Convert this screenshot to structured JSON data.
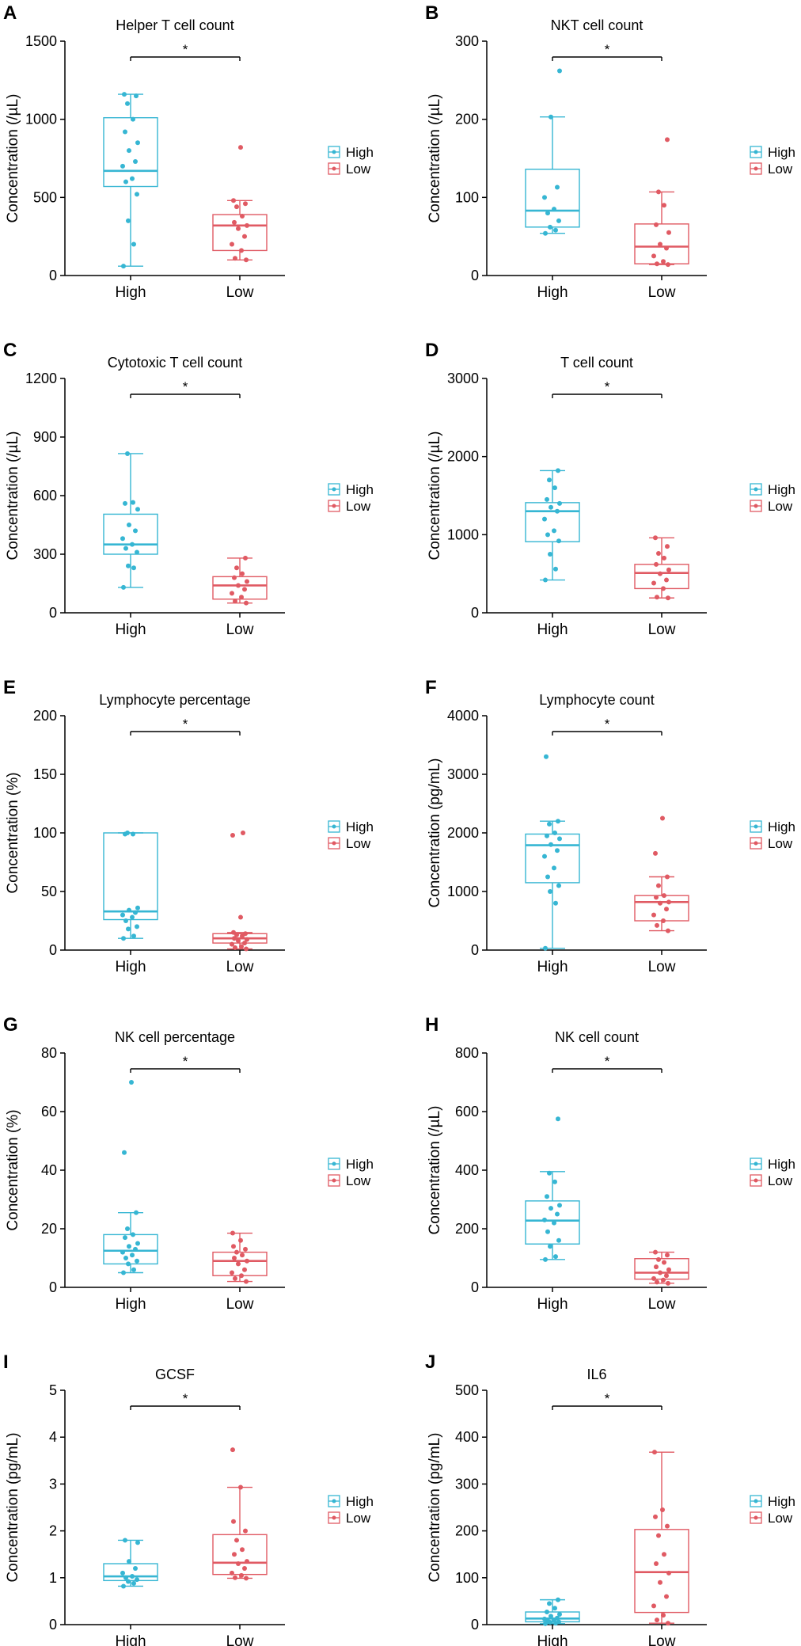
{
  "colors": {
    "high": "#36b6d3",
    "low": "#e05a63",
    "axis": "#000000"
  },
  "legend": {
    "items": [
      "High",
      "Low"
    ]
  },
  "chart_data": [
    {
      "label": "A",
      "title": "Helper T cell count",
      "type": "box",
      "ylabel": "Concentration (/µL)",
      "ylim": [
        0,
        1500
      ],
      "yticks": [
        0,
        500,
        1000,
        1500
      ],
      "categories": [
        "High",
        "Low"
      ],
      "significance": "*",
      "series": [
        {
          "name": "High",
          "box": {
            "min": 60,
            "q1": 570,
            "median": 670,
            "q3": 1010,
            "max": 1160
          },
          "points": [
            60,
            200,
            350,
            520,
            600,
            620,
            700,
            730,
            800,
            850,
            920,
            1000,
            1100,
            1150,
            1160
          ]
        },
        {
          "name": "Low",
          "box": {
            "min": 100,
            "q1": 160,
            "median": 320,
            "q3": 390,
            "max": 480
          },
          "points": [
            100,
            110,
            160,
            200,
            250,
            300,
            320,
            340,
            380,
            440,
            460,
            480,
            820
          ]
        }
      ]
    },
    {
      "label": "B",
      "title": "NKT cell count",
      "type": "box",
      "ylabel": "Concentration (/µL)",
      "ylim": [
        0,
        300
      ],
      "yticks": [
        0,
        100,
        200,
        300
      ],
      "categories": [
        "High",
        "Low"
      ],
      "significance": "*",
      "series": [
        {
          "name": "High",
          "box": {
            "min": 54,
            "q1": 62,
            "median": 83,
            "q3": 136,
            "max": 203
          },
          "points": [
            54,
            58,
            62,
            70,
            80,
            85,
            100,
            113,
            203,
            262
          ]
        },
        {
          "name": "Low",
          "box": {
            "min": 14,
            "q1": 15,
            "median": 37,
            "q3": 66,
            "max": 107
          },
          "points": [
            14,
            15,
            18,
            25,
            35,
            40,
            55,
            65,
            90,
            107,
            174
          ]
        }
      ]
    },
    {
      "label": "C",
      "title": "Cytotoxic T cell count",
      "type": "box",
      "ylabel": "Concentration (/µL)",
      "ylim": [
        0,
        1200
      ],
      "yticks": [
        0,
        300,
        600,
        900,
        1200
      ],
      "categories": [
        "High",
        "Low"
      ],
      "significance": "*",
      "series": [
        {
          "name": "High",
          "box": {
            "min": 130,
            "q1": 300,
            "median": 350,
            "q3": 505,
            "max": 815
          },
          "points": [
            130,
            230,
            240,
            310,
            330,
            350,
            380,
            420,
            450,
            530,
            560,
            565,
            815
          ]
        },
        {
          "name": "Low",
          "box": {
            "min": 50,
            "q1": 70,
            "median": 140,
            "q3": 185,
            "max": 280
          },
          "points": [
            50,
            60,
            80,
            100,
            120,
            140,
            160,
            180,
            200,
            230,
            280
          ]
        }
      ]
    },
    {
      "label": "D",
      "title": "T cell count",
      "type": "box",
      "ylabel": "Concentration (/µL)",
      "ylim": [
        0,
        3000
      ],
      "yticks": [
        0,
        1000,
        2000,
        3000
      ],
      "categories": [
        "High",
        "Low"
      ],
      "significance": "*",
      "series": [
        {
          "name": "High",
          "box": {
            "min": 420,
            "q1": 910,
            "median": 1300,
            "q3": 1410,
            "max": 1820
          },
          "points": [
            420,
            560,
            750,
            920,
            1000,
            1050,
            1200,
            1300,
            1350,
            1400,
            1450,
            1600,
            1700,
            1820
          ]
        },
        {
          "name": "Low",
          "box": {
            "min": 190,
            "q1": 310,
            "median": 510,
            "q3": 620,
            "max": 960
          },
          "points": [
            190,
            200,
            310,
            380,
            420,
            500,
            550,
            620,
            700,
            760,
            850,
            960
          ]
        }
      ]
    },
    {
      "label": "E",
      "title": "Lymphocyte percentage",
      "type": "box",
      "ylabel": "Concentration (%)",
      "ylim": [
        0,
        200
      ],
      "yticks": [
        0,
        50,
        100,
        150,
        200
      ],
      "categories": [
        "High",
        "Low"
      ],
      "significance": "*",
      "series": [
        {
          "name": "High",
          "box": {
            "min": 10,
            "q1": 26,
            "median": 33,
            "q3": 100,
            "max": 100
          },
          "points": [
            10,
            12,
            18,
            20,
            25,
            28,
            30,
            32,
            34,
            36,
            99,
            99,
            100
          ]
        },
        {
          "name": "Low",
          "box": {
            "min": 1,
            "q1": 6,
            "median": 10,
            "q3": 14,
            "max": 15
          },
          "points": [
            1,
            2,
            3,
            5,
            6,
            8,
            9,
            10,
            12,
            13,
            14,
            15,
            28,
            98,
            100
          ]
        }
      ]
    },
    {
      "label": "F",
      "title": "Lymphocyte count",
      "type": "box",
      "ylabel": "Concentration (pg/mL)",
      "ylim": [
        0,
        4000
      ],
      "yticks": [
        0,
        1000,
        2000,
        3000,
        4000
      ],
      "categories": [
        "High",
        "Low"
      ],
      "significance": "*",
      "series": [
        {
          "name": "High",
          "box": {
            "min": 30,
            "q1": 1150,
            "median": 1790,
            "q3": 1980,
            "max": 2200
          },
          "points": [
            30,
            800,
            1000,
            1100,
            1250,
            1400,
            1600,
            1700,
            1800,
            1900,
            1950,
            2000,
            2150,
            2200,
            3300
          ]
        },
        {
          "name": "Low",
          "box": {
            "min": 330,
            "q1": 500,
            "median": 820,
            "q3": 930,
            "max": 1250
          },
          "points": [
            330,
            420,
            500,
            600,
            700,
            800,
            820,
            900,
            930,
            1100,
            1250,
            1650,
            2250
          ]
        }
      ]
    },
    {
      "label": "G",
      "title": "NK cell percentage",
      "type": "box",
      "ylabel": "Concentration (%)",
      "ylim": [
        0,
        80
      ],
      "yticks": [
        0,
        20,
        40,
        60,
        80
      ],
      "categories": [
        "High",
        "Low"
      ],
      "significance": "*",
      "series": [
        {
          "name": "High",
          "box": {
            "min": 5,
            "q1": 8,
            "median": 12.5,
            "q3": 18,
            "max": 25.5
          },
          "points": [
            5,
            6,
            8,
            9,
            10,
            11,
            12,
            13,
            14,
            15,
            17,
            18,
            20,
            25.5,
            46,
            70
          ]
        },
        {
          "name": "Low",
          "box": {
            "min": 2,
            "q1": 4,
            "median": 9,
            "q3": 12,
            "max": 18.5
          },
          "points": [
            2,
            3,
            4,
            5,
            6,
            8,
            9,
            10,
            11,
            12,
            13,
            14,
            16,
            18.5
          ]
        }
      ]
    },
    {
      "label": "H",
      "title": "NK cell count",
      "type": "box",
      "ylabel": "Concentration (/µL)",
      "ylim": [
        0,
        800
      ],
      "yticks": [
        0,
        200,
        400,
        600,
        800
      ],
      "categories": [
        "High",
        "Low"
      ],
      "significance": "*",
      "series": [
        {
          "name": "High",
          "box": {
            "min": 95,
            "q1": 148,
            "median": 228,
            "q3": 295,
            "max": 395
          },
          "points": [
            95,
            105,
            140,
            160,
            190,
            220,
            230,
            250,
            270,
            280,
            310,
            360,
            390,
            575
          ]
        },
        {
          "name": "Low",
          "box": {
            "min": 14,
            "q1": 28,
            "median": 50,
            "q3": 98,
            "max": 120
          },
          "points": [
            14,
            18,
            25,
            30,
            40,
            50,
            60,
            70,
            85,
            95,
            110,
            120
          ]
        }
      ]
    },
    {
      "label": "I",
      "title": "GCSF",
      "type": "box",
      "ylabel": "Concentration (pg/mL)",
      "ylim": [
        0,
        5
      ],
      "yticks": [
        0,
        1,
        2,
        3,
        4,
        5
      ],
      "categories": [
        "High",
        "Low"
      ],
      "significance": "*",
      "series": [
        {
          "name": "High",
          "box": {
            "min": 0.82,
            "q1": 0.94,
            "median": 1.03,
            "q3": 1.3,
            "max": 1.8
          },
          "points": [
            0.82,
            0.88,
            0.92,
            0.96,
            1.0,
            1.03,
            1.1,
            1.2,
            1.35,
            1.75,
            1.8
          ]
        },
        {
          "name": "Low",
          "box": {
            "min": 0.99,
            "q1": 1.07,
            "median": 1.32,
            "q3": 1.92,
            "max": 2.93
          },
          "points": [
            0.99,
            1.0,
            1.05,
            1.1,
            1.2,
            1.3,
            1.35,
            1.5,
            1.6,
            1.8,
            2.0,
            2.2,
            2.93,
            3.73
          ]
        }
      ]
    },
    {
      "label": "J",
      "title": "IL6",
      "type": "box",
      "ylabel": "Concentration (pg/mL)",
      "ylim": [
        0,
        500
      ],
      "yticks": [
        0,
        100,
        200,
        300,
        400,
        500
      ],
      "categories": [
        "High",
        "Low"
      ],
      "significance": "*",
      "series": [
        {
          "name": "High",
          "box": {
            "min": 2,
            "q1": 6,
            "median": 13,
            "q3": 27,
            "max": 53
          },
          "points": [
            2,
            3,
            5,
            6,
            8,
            10,
            12,
            14,
            18,
            22,
            27,
            35,
            45,
            53
          ]
        },
        {
          "name": "Low",
          "box": {
            "min": 3,
            "q1": 26,
            "median": 112,
            "q3": 203,
            "max": 368
          },
          "points": [
            3,
            10,
            20,
            40,
            60,
            90,
            110,
            130,
            150,
            190,
            210,
            230,
            245,
            368
          ]
        }
      ]
    }
  ]
}
